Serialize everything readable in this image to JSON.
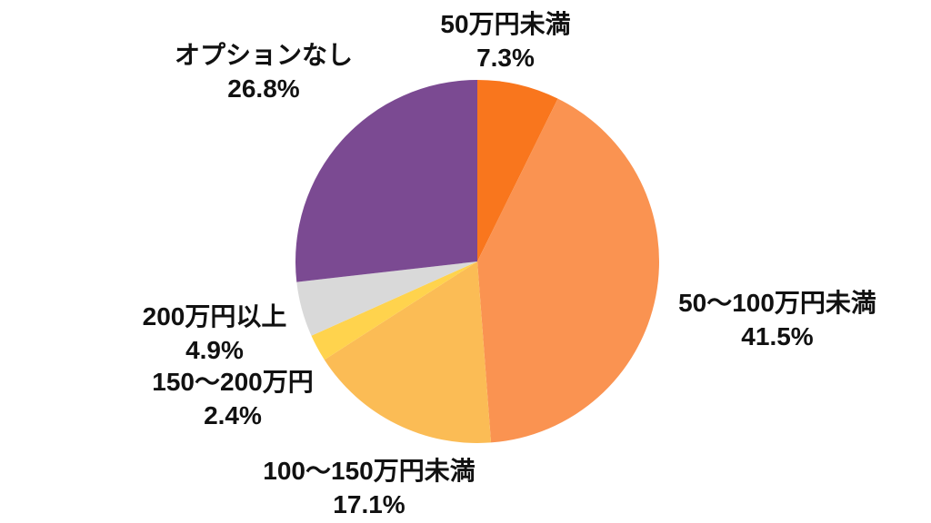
{
  "page": {
    "background_color": "#ffffff",
    "text_color": "#111111"
  },
  "chart_data": {
    "type": "pie",
    "title": "",
    "legend": "none",
    "start_angle_deg": 0,
    "direction": "clockwise",
    "value_unit": "%",
    "slices": [
      {
        "label": "50万円未満",
        "value": 7.3,
        "pct_text": "7.3%",
        "color": "#F9761D"
      },
      {
        "label": "50〜100万円未満",
        "value": 41.5,
        "pct_text": "41.5%",
        "color": "#FA9351"
      },
      {
        "label": "100〜150万円未満",
        "value": 17.1,
        "pct_text": "17.1%",
        "color": "#FBBC55"
      },
      {
        "label": "150〜200万円",
        "value": 2.4,
        "pct_text": "2.4%",
        "color": "#FFD34D"
      },
      {
        "label": "200万円以上",
        "value": 4.9,
        "pct_text": "4.9%",
        "color": "#D9D9D9"
      },
      {
        "label": "オプションなし",
        "value": 26.8,
        "pct_text": "26.8%",
        "color": "#7B4A92"
      }
    ]
  }
}
